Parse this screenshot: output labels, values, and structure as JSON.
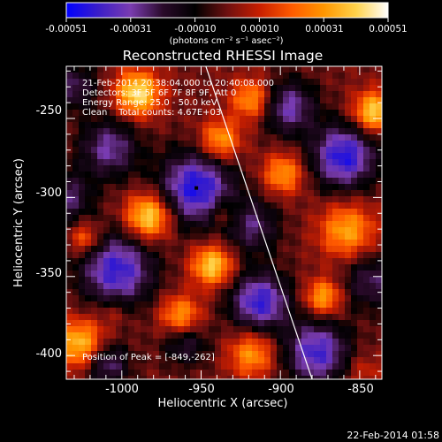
{
  "colorbar": {
    "ticks": [
      "-0.00051",
      "-0.00031",
      "-0.00010",
      "0.00010",
      "0.00031",
      "0.00051"
    ],
    "units": "(photons cm⁻² s⁻¹ asec⁻²)"
  },
  "title": "Reconstructed RHESSI Image",
  "info": {
    "line1": "21-Feb-2014 20:38:04.000 to 20:40:08.000",
    "line2": "Detectors: 3F 5F 6F 7F 8F 9F, Att 0",
    "line3": "Energy Range: 25.0 - 50.0 keV",
    "line4": "Clean    Total counts: 4.67E+03",
    "peak": "Position of Peak = [-849,-262]"
  },
  "axes": {
    "xlabel": "Heliocentric X (arcsec)",
    "ylabel": "Heliocentric Y (arcsec)",
    "xticks": [
      "-1000",
      "-950",
      "-900",
      "-850"
    ],
    "yticks": [
      "-250",
      "-300",
      "-350",
      "-400"
    ]
  },
  "timestamp": "22-Feb-2014 01:58",
  "chart_data": {
    "type": "heatmap",
    "title": "Reconstructed RHESSI Image",
    "xlabel": "Heliocentric X (arcsec)",
    "ylabel": "Heliocentric Y (arcsec)",
    "xlim": [
      -1035,
      -836
    ],
    "ylim": [
      -415,
      -217
    ],
    "zlim": [
      -0.00051,
      0.00051
    ],
    "x_ticks": [
      -1000,
      -950,
      -900,
      -850
    ],
    "y_ticks": [
      -250,
      -300,
      -350,
      -400
    ],
    "colormap": [
      "#0000ff",
      "#3b1ec8",
      "#7a3cb0",
      "#2a0a2a",
      "#000000",
      "#6e1010",
      "#c81e00",
      "#ff5a00",
      "#ff9600",
      "#ffd24a",
      "#ffffff"
    ],
    "peak_position": [
      -849,
      -262
    ],
    "limb_line": [
      [
        -947,
        -217
      ],
      [
        -880,
        -415
      ]
    ],
    "blobs": [
      {
        "x": -953,
        "y": -294,
        "v": -0.00046,
        "r": 16
      },
      {
        "x": -860,
        "y": -274,
        "v": -0.00045,
        "r": 14
      },
      {
        "x": -1003,
        "y": -346,
        "v": -0.00042,
        "r": 16
      },
      {
        "x": -913,
        "y": -366,
        "v": -0.00042,
        "r": 13
      },
      {
        "x": -877,
        "y": -398,
        "v": -0.0004,
        "r": 14
      },
      {
        "x": -1008,
        "y": -269,
        "v": -0.0003,
        "r": 13
      },
      {
        "x": -895,
        "y": -243,
        "v": -0.00032,
        "r": 12
      },
      {
        "x": -918,
        "y": -318,
        "v": -0.00025,
        "r": 12
      },
      {
        "x": -1035,
        "y": -300,
        "v": -0.00026,
        "r": 11
      },
      {
        "x": -1010,
        "y": -405,
        "v": -0.0003,
        "r": 10
      },
      {
        "x": -960,
        "y": -392,
        "v": -0.00022,
        "r": 10
      },
      {
        "x": -1030,
        "y": -230,
        "v": -0.00024,
        "r": 10
      },
      {
        "x": -843,
        "y": -353,
        "v": -0.00024,
        "r": 12
      },
      {
        "x": -983,
        "y": -312,
        "v": 0.00046,
        "r": 10
      },
      {
        "x": -990,
        "y": -234,
        "v": 0.00046,
        "r": 10
      },
      {
        "x": -1026,
        "y": -393,
        "v": 0.0004,
        "r": 11
      },
      {
        "x": -943,
        "y": -343,
        "v": 0.00042,
        "r": 9
      },
      {
        "x": -938,
        "y": -264,
        "v": 0.00034,
        "r": 9
      },
      {
        "x": -918,
        "y": -238,
        "v": 0.00032,
        "r": 9
      },
      {
        "x": -898,
        "y": -285,
        "v": 0.00031,
        "r": 9
      },
      {
        "x": -858,
        "y": -321,
        "v": 0.00033,
        "r": 12
      },
      {
        "x": -841,
        "y": -246,
        "v": 0.00043,
        "r": 9
      },
      {
        "x": -873,
        "y": -363,
        "v": 0.00034,
        "r": 8
      },
      {
        "x": -918,
        "y": -399,
        "v": 0.00031,
        "r": 10
      },
      {
        "x": -963,
        "y": -375,
        "v": 0.00033,
        "r": 9
      },
      {
        "x": -1023,
        "y": -326,
        "v": 0.00025,
        "r": 7
      },
      {
        "x": -935,
        "y": -310,
        "v": 0.00018,
        "r": 7
      },
      {
        "x": -1005,
        "y": -372,
        "v": 0.0001,
        "r": 7
      },
      {
        "x": -848,
        "y": -410,
        "v": 0.00012,
        "r": 8
      }
    ]
  }
}
